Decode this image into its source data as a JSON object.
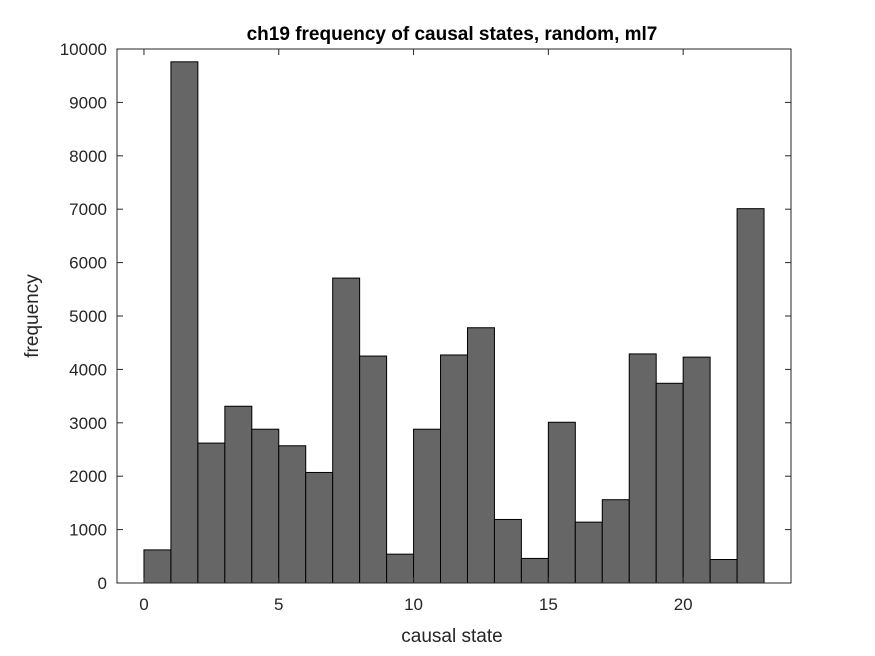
{
  "chart_data": {
    "type": "bar",
    "title": "ch19 frequency of causal states, random, ml7",
    "xlabel": "causal state",
    "ylabel": "frequency",
    "x": [
      0.5,
      1.5,
      2.5,
      3.5,
      4.5,
      5.5,
      6.5,
      7.5,
      8.5,
      9.5,
      10.5,
      11.5,
      12.5,
      13.5,
      14.5,
      15.5,
      16.5,
      17.5,
      18.5,
      19.5,
      20.5,
      21.5,
      22.5
    ],
    "bin_width": 1,
    "values": [
      620,
      9760,
      2620,
      3310,
      2880,
      2570,
      2070,
      5710,
      4250,
      540,
      2880,
      4270,
      4780,
      1190,
      460,
      3010,
      1140,
      1560,
      4290,
      3740,
      4230,
      440,
      7010
    ],
    "xlim": [
      -1,
      24
    ],
    "ylim": [
      0,
      10000
    ],
    "xticks": [
      0,
      5,
      10,
      15,
      20
    ],
    "yticks": [
      0,
      1000,
      2000,
      3000,
      4000,
      5000,
      6000,
      7000,
      8000,
      9000,
      10000
    ],
    "bar_color": "#666666",
    "edge_color": "#000000",
    "grid": false,
    "legend": "none"
  }
}
